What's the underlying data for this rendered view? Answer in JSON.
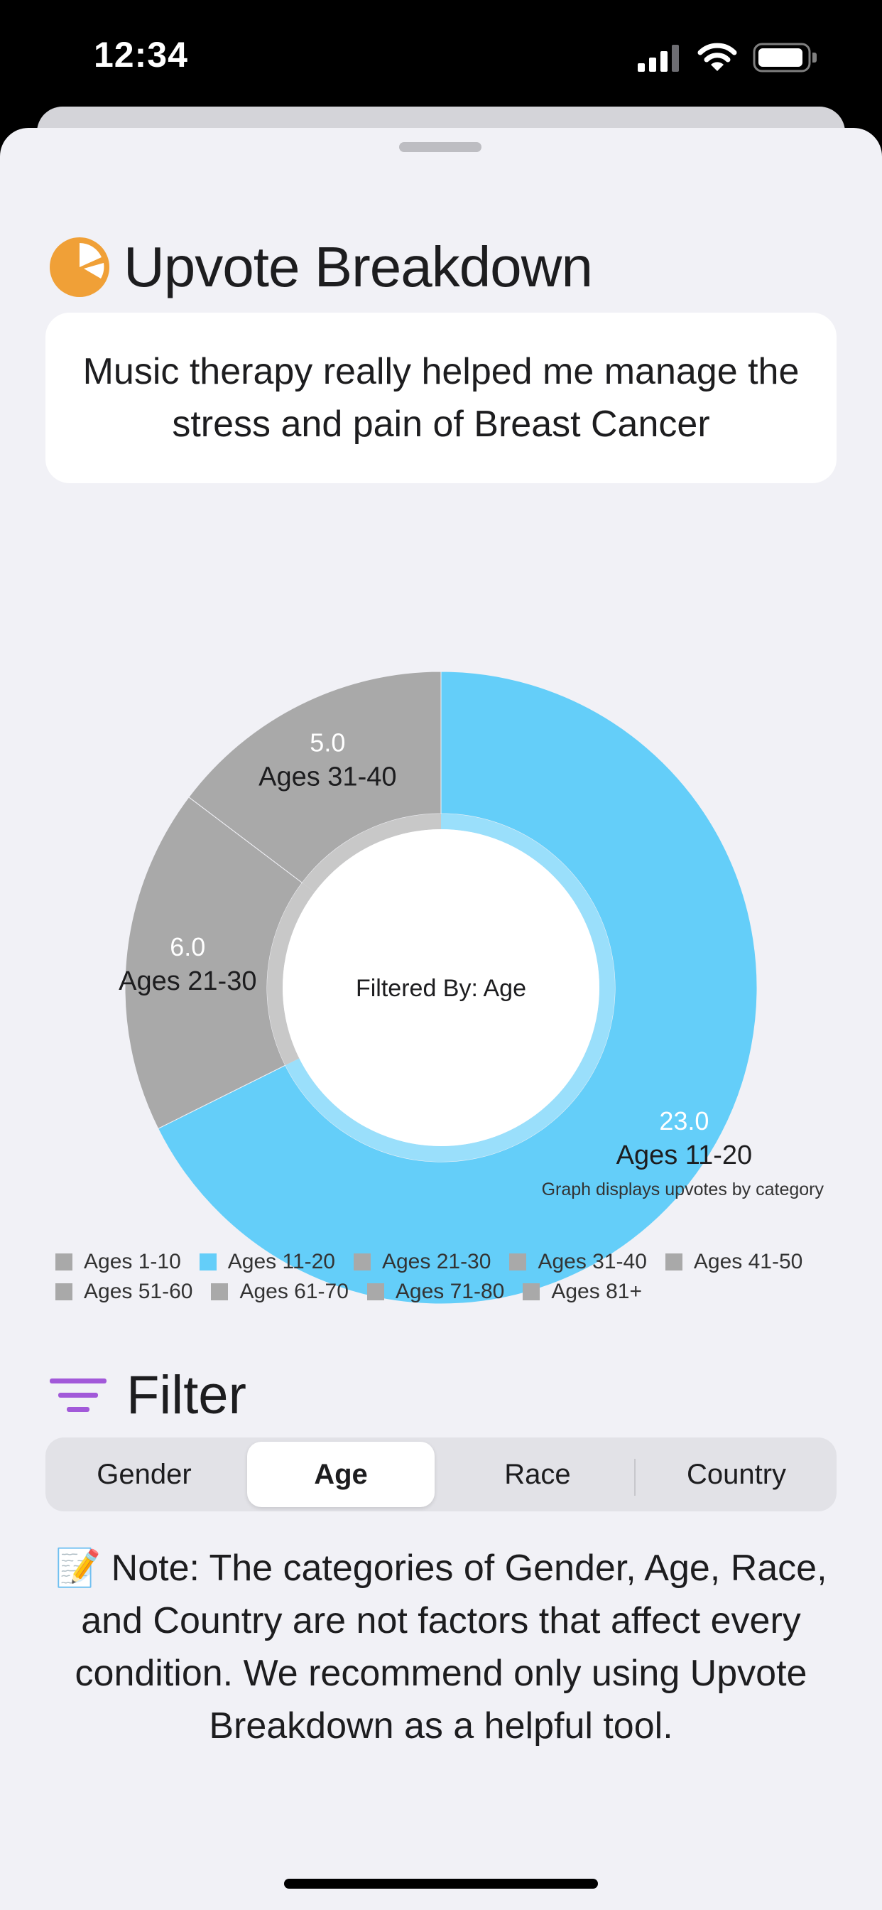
{
  "status_bar": {
    "time": "12:34"
  },
  "header": {
    "title": "Upvote Breakdown",
    "icon": "pie-chart-icon",
    "icon_color": "#F0A037"
  },
  "post": {
    "text": "Music therapy really helped me manage the stress and pain of Breast Cancer"
  },
  "chart_data": {
    "type": "pie",
    "center_label": "Filtered By: Age",
    "caption": "Graph displays upvotes by category",
    "slices": [
      {
        "label": "Ages 11-20",
        "value": 23.0,
        "value_text": "23.0",
        "color": "#64CEF9"
      },
      {
        "label": "Ages 21-30",
        "value": 6.0,
        "value_text": "6.0",
        "color": "#A9A9A9"
      },
      {
        "label": "Ages 31-40",
        "value": 5.0,
        "value_text": "5.0",
        "color": "#A9A9A9"
      }
    ],
    "legend": [
      {
        "label": "Ages 1-10",
        "color": "#A9A9A9"
      },
      {
        "label": "Ages 11-20",
        "color": "#64CEF9"
      },
      {
        "label": "Ages 21-30",
        "color": "#A9A9A9"
      },
      {
        "label": "Ages 31-40",
        "color": "#A9A9A9"
      },
      {
        "label": "Ages 41-50",
        "color": "#A9A9A9"
      },
      {
        "label": "Ages 51-60",
        "color": "#A9A9A9"
      },
      {
        "label": "Ages 61-70",
        "color": "#A9A9A9"
      },
      {
        "label": "Ages 71-80",
        "color": "#A9A9A9"
      },
      {
        "label": "Ages 81+",
        "color": "#A9A9A9"
      }
    ]
  },
  "filter": {
    "title": "Filter",
    "icon": "filter-lines-icon",
    "icon_color": "#A259D9",
    "segments": [
      "Gender",
      "Age",
      "Race",
      "Country"
    ],
    "selected": "Age"
  },
  "note": {
    "emoji": "📝",
    "text": "Note: The categories of Gender, Age, Race, and Country are not factors that affect every condition. We recommend only using Upvote Breakdown as a helpful tool."
  }
}
